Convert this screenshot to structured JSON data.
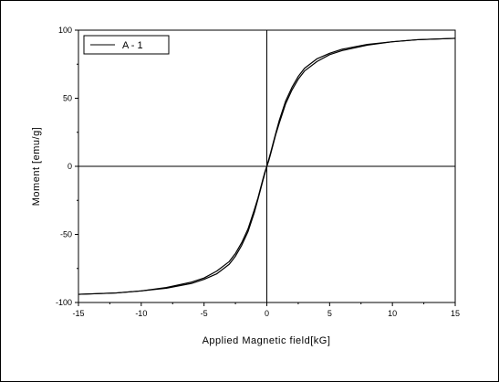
{
  "chart_data": {
    "type": "line",
    "title": "",
    "xlabel": "Applied Magnetic field[kG]",
    "ylabel": "Moment [emu/g]",
    "xlim": [
      -15,
      15
    ],
    "ylim": [
      -100,
      100
    ],
    "x_ticks": [
      -15,
      -10,
      -5,
      0,
      5,
      10,
      15
    ],
    "y_ticks": [
      -100,
      -50,
      0,
      50,
      100
    ],
    "x_tick_labels": [
      "-15",
      "-10",
      "-5",
      "0",
      "5",
      "10",
      "15"
    ],
    "y_tick_labels": [
      "-100",
      "-50",
      "0",
      "50",
      "100"
    ],
    "grid": false,
    "legend": {
      "position": "top-left",
      "entries": [
        "A - 1"
      ]
    },
    "zero_lines": true,
    "series": [
      {
        "name": "A - 1",
        "color": "#000000",
        "branches": [
          {
            "x": [
              15,
              12,
              10,
              8,
              6,
              5,
              4,
              3,
              2.5,
              2,
              1.5,
              1,
              0.7,
              0.5,
              0.3,
              0.15,
              0,
              -0.15,
              -0.3,
              -0.5,
              -0.7,
              -1,
              -1.5,
              -2,
              -2.5,
              -3,
              -4,
              -5,
              -6,
              -8,
              -10,
              -12,
              -15
            ],
            "y": [
              94,
              93,
              91.5,
              89,
              85,
              82,
              77,
              70,
              64,
              56,
              46,
              32,
              23,
              16,
              9,
              4,
              0,
              -5,
              -10,
              -17,
              -24,
              -34,
              -48,
              -58,
              -66,
              -72,
              -79,
              -83,
              -86,
              -89.5,
              -91.5,
              -93,
              -94
            ]
          },
          {
            "x": [
              -15,
              -12,
              -10,
              -8,
              -6,
              -5,
              -4,
              -3,
              -2.5,
              -2,
              -1.5,
              -1,
              -0.7,
              -0.5,
              -0.3,
              -0.15,
              0,
              0.15,
              0.3,
              0.5,
              0.7,
              1,
              1.5,
              2,
              2.5,
              3,
              4,
              5,
              6,
              8,
              10,
              12,
              15
            ],
            "y": [
              -94,
              -93,
              -91.5,
              -89,
              -85,
              -82,
              -77,
              -70,
              -64,
              -56,
              -46,
              -32,
              -23,
              -16,
              -9,
              -4,
              0,
              5,
              10,
              17,
              24,
              34,
              48,
              58,
              66,
              72,
              79,
              83,
              86,
              89.5,
              91.5,
              93,
              94
            ]
          }
        ]
      }
    ]
  }
}
